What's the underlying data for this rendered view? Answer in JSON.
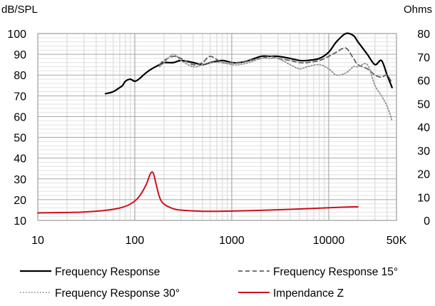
{
  "chart_data": {
    "type": "line",
    "title": "",
    "y_left_label": "dB/SPL",
    "y_right_label": "Ohms",
    "x_scale": "log",
    "xlim": [
      10,
      50000
    ],
    "ylim": [
      10,
      100
    ],
    "y2lim": [
      0,
      80
    ],
    "x_ticks": [
      {
        "value": 10,
        "label": "10"
      },
      {
        "value": 100,
        "label": "100"
      },
      {
        "value": 1000,
        "label": "1000"
      },
      {
        "value": 10000,
        "label": "10000"
      },
      {
        "value": 50000,
        "label": "50K"
      }
    ],
    "y_ticks": [
      100,
      90,
      80,
      70,
      60,
      50,
      40,
      30,
      20,
      10
    ],
    "y2_ticks": [
      80,
      70,
      60,
      50,
      40,
      30,
      20,
      10,
      0
    ],
    "grid": true,
    "legend_position": "bottom",
    "series": [
      {
        "name": "Frequency Response",
        "axis": "left",
        "color": "#000000",
        "style": "solid",
        "x": [
          50,
          60,
          70,
          75,
          80,
          90,
          100,
          110,
          130,
          150,
          180,
          200,
          250,
          300,
          400,
          500,
          600,
          800,
          1000,
          1200,
          1500,
          2000,
          2500,
          3000,
          4000,
          5000,
          6000,
          8000,
          10000,
          12000,
          15000,
          18000,
          20000,
          25000,
          30000,
          35000,
          40000,
          45000
        ],
        "y": [
          71,
          72,
          74,
          75,
          77,
          78,
          77,
          78,
          81,
          83,
          85,
          86,
          86,
          87,
          86,
          85,
          86,
          87,
          86,
          86,
          87,
          89,
          89,
          89,
          88,
          87,
          87,
          88,
          91,
          96,
          100,
          99,
          96,
          90,
          85,
          87,
          80,
          74
        ]
      },
      {
        "name": "Frequency Response 15°",
        "axis": "left",
        "color": "#606060",
        "style": "dashed",
        "x": [
          180,
          200,
          250,
          300,
          400,
          500,
          600,
          800,
          1000,
          1200,
          1500,
          2000,
          2500,
          3000,
          4000,
          5000,
          6000,
          8000,
          10000,
          12000,
          15000,
          18000,
          20000,
          25000,
          30000,
          35000,
          40000,
          45000
        ],
        "y": [
          85,
          87,
          89,
          88,
          85,
          86,
          89,
          86,
          86,
          86,
          87,
          88,
          89,
          88,
          87,
          86,
          86,
          87,
          89,
          91,
          93,
          88,
          85,
          83,
          80,
          79,
          80,
          76
        ]
      },
      {
        "name": "Frequency Response 30°",
        "axis": "left",
        "color": "#909090",
        "style": "dotted",
        "x": [
          180,
          200,
          250,
          300,
          400,
          500,
          600,
          800,
          1000,
          1200,
          1500,
          2000,
          2500,
          3000,
          4000,
          5000,
          6000,
          8000,
          10000,
          12000,
          15000,
          18000,
          20000,
          25000,
          30000,
          35000,
          40000,
          45000
        ],
        "y": [
          84,
          86,
          90,
          87,
          84,
          85,
          86,
          86,
          85,
          85,
          86,
          88,
          88,
          88,
          85,
          83,
          84,
          85,
          83,
          80,
          81,
          84,
          84,
          85,
          75,
          70,
          65,
          58
        ]
      },
      {
        "name": "Impendance Z",
        "axis": "right",
        "color": "#d0111c",
        "style": "solid",
        "x": [
          10,
          20,
          30,
          50,
          70,
          90,
          110,
          130,
          145,
          155,
          165,
          180,
          200,
          250,
          300,
          400,
          500,
          700,
          1000,
          2000,
          5000,
          10000,
          15000,
          20000
        ],
        "y": [
          3.2,
          3.4,
          3.6,
          4.3,
          5.3,
          7.0,
          10.0,
          15.0,
          20.0,
          20.3,
          16.0,
          10.0,
          7.0,
          5.0,
          4.4,
          4.1,
          3.9,
          3.9,
          4.0,
          4.3,
          4.9,
          5.4,
          5.7,
          5.8
        ]
      }
    ]
  }
}
